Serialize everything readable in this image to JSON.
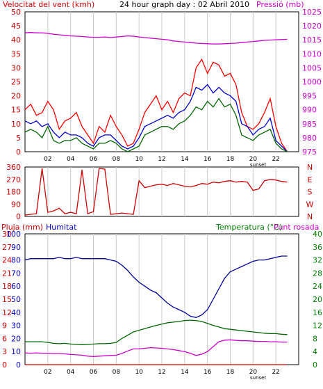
{
  "colors": {
    "wind": "#ff0000",
    "pressure": "#cc00cc",
    "gust": "#ff0000",
    "avg": "#0000cc",
    "dir": "#cc0000",
    "humidity": "#000099",
    "temperature": "#006600",
    "dewpoint": "#cc00cc",
    "rain": "#cc0000",
    "grid": "#cccccc",
    "label_green": "#008000",
    "label_magenta": "#cc00cc",
    "label_red": "#cc0000",
    "label_blue": "#0000cc"
  },
  "header": {
    "wind_label": "Velocitat del vent (kmh)",
    "title": "24 hour graph day : 02 Abril 2010",
    "pressure_label": "Pressió (mb)"
  },
  "chart_data": [
    {
      "type": "line",
      "title": "24 hour graph day : 02 Abril 2010",
      "ylabel": "Velocitat del vent (kmh)",
      "y2label": "Pressió (mb)",
      "ylim": [
        0,
        50
      ],
      "y2lim": [
        975,
        1025
      ],
      "yticks": [
        "0",
        "5",
        "10",
        "15",
        "20",
        "25",
        "30",
        "35",
        "40",
        "45",
        "50"
      ],
      "y2ticks": [
        "975",
        "980",
        "985",
        "990",
        "995",
        "1000",
        "1005",
        "1010",
        "1015",
        "1020",
        "1025"
      ],
      "xticks": [
        "02",
        "04",
        "06",
        "08",
        "10",
        "12",
        "14",
        "16",
        "18",
        "20",
        "22"
      ],
      "sunset_label": "sunset",
      "x": [
        0,
        0.5,
        1,
        1.5,
        2,
        2.5,
        3,
        3.5,
        4,
        4.5,
        5,
        5.5,
        6,
        6.5,
        7,
        7.5,
        8,
        8.5,
        9,
        9.5,
        10,
        10.5,
        11,
        11.5,
        12,
        12.5,
        13,
        13.5,
        14,
        14.5,
        15,
        15.5,
        16,
        16.5,
        17,
        17.5,
        18,
        18.5,
        19,
        19.5,
        20,
        20.5,
        21,
        21.5,
        22,
        22.5,
        23
      ],
      "series": [
        {
          "name": "gust",
          "values": [
            15,
            17,
            13,
            14,
            18,
            15,
            8,
            11,
            12,
            14,
            9,
            6,
            3,
            9,
            7,
            13,
            9,
            6,
            2,
            3,
            8,
            14,
            17,
            20,
            15,
            18,
            14,
            19,
            21,
            20,
            30,
            33,
            28,
            32,
            31,
            27,
            28,
            24,
            14,
            9,
            8,
            10,
            14,
            19,
            9,
            3,
            0
          ]
        },
        {
          "name": "average",
          "values": [
            11,
            10,
            11,
            9,
            10,
            7,
            5,
            7,
            6,
            6,
            5,
            3,
            2,
            5,
            6,
            6,
            4,
            2,
            1,
            2,
            5,
            9,
            10,
            11,
            12,
            13,
            12,
            14,
            15,
            18,
            23,
            22,
            24,
            21,
            23,
            21,
            20,
            18,
            10,
            9,
            6,
            8,
            9,
            12,
            4,
            2,
            0
          ]
        },
        {
          "name": "low",
          "values": [
            7,
            8,
            7,
            5,
            9,
            4,
            3,
            4,
            4,
            5,
            3,
            2,
            1,
            3,
            3,
            4,
            3,
            1,
            0,
            1,
            2,
            6,
            7,
            8,
            9,
            9,
            8,
            10,
            11,
            13,
            16,
            15,
            18,
            16,
            19,
            16,
            17,
            13,
            6,
            5,
            4,
            6,
            7,
            8,
            3,
            1,
            0
          ]
        },
        {
          "name": "pressure",
          "values": [
            1017.5,
            1017.6,
            1017.5,
            1017.5,
            1017.3,
            1017.0,
            1016.8,
            1016.6,
            1016.4,
            1016.3,
            1016.2,
            1016.0,
            1015.9,
            1015.9,
            1016.0,
            1015.8,
            1016.0,
            1016.2,
            1016.4,
            1016.3,
            1016.0,
            1015.8,
            1015.6,
            1015.4,
            1015.2,
            1015.0,
            1014.6,
            1014.4,
            1014.2,
            1014.0,
            1013.8,
            1013.7,
            1013.6,
            1013.5,
            1013.5,
            1013.6,
            1013.7,
            1013.8,
            1014.0,
            1014.2,
            1014.4,
            1014.6,
            1014.8,
            1014.9,
            1015.0,
            1015.1,
            1015.2
          ]
        }
      ]
    },
    {
      "type": "line",
      "ylim": [
        0,
        360
      ],
      "yticks": [
        "0",
        "90",
        "180",
        "270",
        "360"
      ],
      "compass": [
        "N",
        "W",
        "S",
        "E",
        "N"
      ],
      "x": [
        0,
        0.5,
        1,
        1.5,
        2,
        2.5,
        3,
        3.5,
        4,
        4.5,
        5,
        5.5,
        6,
        6.5,
        7,
        7.5,
        8,
        8.5,
        9,
        9.5,
        10,
        10.5,
        11,
        11.5,
        12,
        12.5,
        13,
        13.5,
        14,
        14.5,
        15,
        15.5,
        16,
        16.5,
        17,
        17.5,
        18,
        18.5,
        19,
        19.5,
        20,
        20.5,
        21,
        21.5,
        22,
        22.5,
        23
      ],
      "series": [
        {
          "name": "direction",
          "values": [
            10,
            15,
            20,
            350,
            30,
            40,
            60,
            20,
            30,
            20,
            340,
            20,
            35,
            350,
            345,
            15,
            20,
            25,
            20,
            15,
            260,
            210,
            220,
            230,
            235,
            225,
            240,
            230,
            220,
            215,
            225,
            240,
            235,
            250,
            245,
            255,
            260,
            250,
            255,
            250,
            190,
            200,
            260,
            270,
            265,
            255,
            250
          ]
        }
      ]
    },
    {
      "type": "line",
      "ylabel": "Pluja (mm)",
      "y1label": "Humitat",
      "y2label": "Temperatura (°C)",
      "y3label": "Punt rosada",
      "ylim": [
        0,
        30
      ],
      "ylim_humidity": [
        0,
        100
      ],
      "ylim_temp": [
        0,
        40
      ],
      "yticks_rain": [
        "0",
        "3",
        "6",
        "9",
        "12",
        "15",
        "18",
        "21",
        "24",
        "27",
        "30"
      ],
      "yticks_hum": [
        "0",
        "10",
        "20",
        "30",
        "40",
        "50",
        "60",
        "70",
        "80",
        "90",
        "100"
      ],
      "yticks_temp": [
        "0",
        "4",
        "8",
        "12",
        "16",
        "20",
        "24",
        "28",
        "32",
        "36",
        "40"
      ],
      "xticks": [
        "02",
        "04",
        "06",
        "08",
        "10",
        "12",
        "14",
        "16",
        "18",
        "20",
        "22"
      ],
      "sunset_label": "sunset",
      "x": [
        0,
        0.5,
        1,
        1.5,
        2,
        2.5,
        3,
        3.5,
        4,
        4.5,
        5,
        5.5,
        6,
        6.5,
        7,
        7.5,
        8,
        8.5,
        9,
        9.5,
        10,
        10.5,
        11,
        11.5,
        12,
        12.5,
        13,
        13.5,
        14,
        14.5,
        15,
        15.5,
        16,
        16.5,
        17,
        17.5,
        18,
        18.5,
        19,
        19.5,
        20,
        20.5,
        21,
        21.5,
        22,
        22.5,
        23
      ],
      "series": [
        {
          "name": "Humitat",
          "values": [
            80,
            81,
            81,
            81,
            81,
            81,
            82,
            81,
            81,
            82,
            81,
            81,
            81,
            81,
            81,
            80,
            79,
            76,
            72,
            67,
            63,
            60,
            57,
            55,
            51,
            47,
            44,
            42,
            40,
            37,
            36,
            38,
            42,
            50,
            58,
            66,
            71,
            73,
            75,
            77,
            79,
            80,
            80,
            81,
            82,
            83,
            83
          ]
        },
        {
          "name": "Temperatura",
          "values": [
            7,
            7,
            7,
            7,
            6.8,
            6.5,
            6.4,
            6.5,
            6.3,
            6.2,
            6.1,
            6.2,
            6.3,
            6.4,
            6.4,
            6.5,
            6.8,
            8,
            9,
            10,
            10.5,
            11,
            11.5,
            12,
            12.4,
            12.8,
            13,
            13.2,
            13.5,
            13.6,
            13.5,
            13.2,
            12.6,
            12.0,
            11.5,
            11.0,
            10.8,
            10.6,
            10.4,
            10.2,
            10,
            9.8,
            9.6,
            9.5,
            9.5,
            9.3,
            9.2
          ]
        },
        {
          "name": "Punt rosada",
          "values": [
            3.6,
            3.5,
            3.6,
            3.5,
            3.5,
            3.4,
            3.4,
            3.3,
            3.1,
            3.0,
            2.9,
            2.6,
            2.5,
            2.6,
            2.7,
            2.8,
            2.9,
            3.4,
            4.2,
            4.8,
            4.8,
            5.0,
            5.2,
            5.1,
            5.0,
            4.8,
            4.6,
            4.3,
            4.0,
            3.5,
            2.8,
            3.2,
            4.0,
            5.5,
            7.0,
            7.5,
            7.6,
            7.4,
            7.3,
            7.3,
            7.2,
            7.1,
            7.1,
            7.0,
            7.0,
            6.9,
            6.9
          ]
        },
        {
          "name": "Pluja",
          "values": [
            0,
            0,
            0,
            0,
            0,
            0,
            0,
            0,
            0,
            0,
            0,
            0,
            0,
            0,
            0,
            0,
            0,
            0,
            0,
            0,
            0,
            0,
            0,
            0,
            0,
            0,
            0,
            0,
            0,
            0,
            0,
            0,
            0,
            0,
            0,
            0,
            0,
            0,
            0,
            0,
            0,
            0,
            0,
            0,
            0,
            0,
            0
          ]
        }
      ]
    }
  ]
}
